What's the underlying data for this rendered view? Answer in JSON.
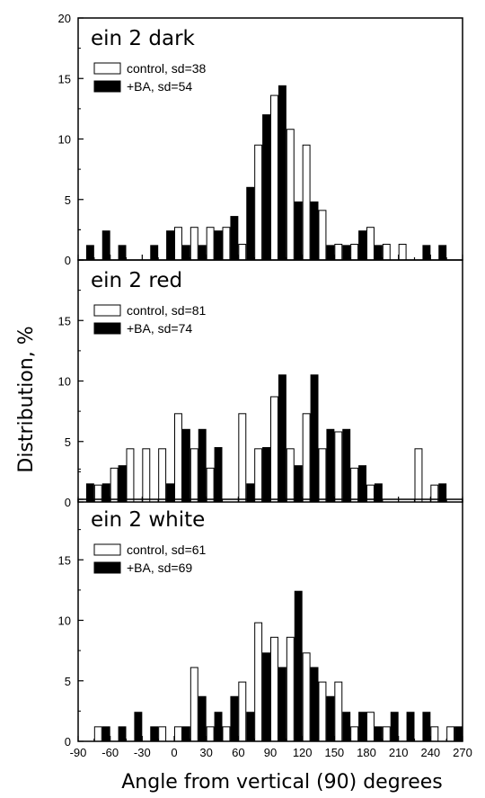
{
  "figure": {
    "ylabel": "Distribution, %",
    "xlabel": "Angle from vertical (90) degrees"
  },
  "chart_data": [
    {
      "type": "bar",
      "title": "ein 2  dark",
      "xlim": [
        -90,
        270
      ],
      "ylim": [
        0,
        20
      ],
      "yticks": [
        "0",
        "5",
        "10",
        "15",
        "20"
      ],
      "series": [
        {
          "name": "control, sd=38",
          "color": "#ffffff",
          "x": [
            -90,
            -75,
            -60,
            -45,
            -30,
            -15,
            0,
            15,
            30,
            45,
            60,
            75,
            90,
            105,
            120,
            135,
            150,
            165,
            180,
            195,
            210,
            225,
            240,
            255
          ],
          "values": [
            0,
            0,
            0,
            0,
            0,
            0,
            2.7,
            2.7,
            2.7,
            2.7,
            1.3,
            9.5,
            13.6,
            10.8,
            9.5,
            4.1,
            1.3,
            1.3,
            2.7,
            1.3,
            1.3,
            0,
            0,
            0
          ]
        },
        {
          "name": "+BA, sd=54",
          "color": "#000000",
          "x": [
            -90,
            -75,
            -60,
            -45,
            -30,
            -15,
            0,
            15,
            30,
            45,
            60,
            75,
            90,
            105,
            120,
            135,
            150,
            165,
            180,
            195,
            210,
            225,
            240,
            255
          ],
          "values": [
            1.2,
            2.4,
            1.2,
            0,
            1.2,
            2.4,
            1.2,
            1.2,
            2.4,
            3.6,
            6.0,
            12.0,
            14.4,
            4.8,
            4.8,
            1.2,
            1.2,
            2.4,
            1.2,
            0,
            0,
            1.2,
            1.2,
            0
          ]
        }
      ]
    },
    {
      "type": "bar",
      "title": "ein 2  red",
      "xlim": [
        -90,
        270
      ],
      "ylim": [
        0,
        20
      ],
      "yticks": [
        "0",
        "5",
        "10",
        "15",
        ""
      ],
      "series": [
        {
          "name": "control, sd=81",
          "color": "#ffffff",
          "x": [
            -90,
            -75,
            -60,
            -45,
            -30,
            -15,
            0,
            15,
            30,
            45,
            60,
            75,
            90,
            105,
            120,
            135,
            150,
            165,
            180,
            195,
            210,
            225,
            240,
            255
          ],
          "values": [
            0,
            1.4,
            2.8,
            4.4,
            4.4,
            4.4,
            7.3,
            4.4,
            2.8,
            0,
            7.3,
            4.4,
            8.7,
            4.4,
            7.3,
            4.4,
            5.8,
            2.8,
            1.4,
            0,
            0,
            4.4,
            1.4,
            0
          ]
        },
        {
          "name": "+BA, sd=74",
          "color": "#000000",
          "x": [
            -90,
            -75,
            -60,
            -45,
            -30,
            -15,
            0,
            15,
            30,
            45,
            60,
            75,
            90,
            105,
            120,
            135,
            150,
            165,
            180,
            195,
            210,
            225,
            240,
            255
          ],
          "values": [
            1.5,
            1.5,
            3.0,
            0,
            0,
            1.5,
            6.0,
            6.0,
            4.5,
            0,
            1.5,
            4.5,
            10.5,
            3.0,
            10.5,
            6.0,
            6.0,
            3.0,
            1.5,
            0,
            0,
            0,
            1.5,
            0
          ]
        }
      ]
    },
    {
      "type": "bar",
      "title": "ein 2  white",
      "xlim": [
        -90,
        270
      ],
      "ylim": [
        0,
        20
      ],
      "xticks": [
        "-90",
        "-60",
        "-30",
        "0",
        "30",
        "60",
        "90",
        "120",
        "150",
        "180",
        "210",
        "240",
        "270"
      ],
      "yticks": [
        "0",
        "5",
        "10",
        "15",
        ""
      ],
      "series": [
        {
          "name": "control, sd=61",
          "color": "#ffffff",
          "x": [
            -90,
            -75,
            -60,
            -45,
            -30,
            -15,
            0,
            15,
            30,
            45,
            60,
            75,
            90,
            105,
            120,
            135,
            150,
            165,
            180,
            195,
            210,
            225,
            240,
            255
          ],
          "values": [
            0,
            1.2,
            0,
            0,
            0,
            1.2,
            1.2,
            6.1,
            1.2,
            1.2,
            4.9,
            9.8,
            8.6,
            8.6,
            7.3,
            4.9,
            4.9,
            1.2,
            2.4,
            1.2,
            0,
            0,
            1.2,
            1.2
          ]
        },
        {
          "name": "+BA, sd=69",
          "color": "#000000",
          "x": [
            -90,
            -75,
            -60,
            -45,
            -30,
            -15,
            0,
            15,
            30,
            45,
            60,
            75,
            90,
            105,
            120,
            135,
            150,
            165,
            180,
            195,
            210,
            225,
            240,
            255
          ],
          "values": [
            0,
            1.2,
            1.2,
            2.4,
            1.2,
            0,
            1.2,
            3.7,
            2.4,
            3.7,
            2.4,
            7.3,
            6.1,
            12.4,
            6.1,
            3.7,
            2.4,
            2.4,
            1.2,
            2.4,
            2.4,
            2.4,
            0,
            1.2
          ]
        }
      ]
    }
  ]
}
